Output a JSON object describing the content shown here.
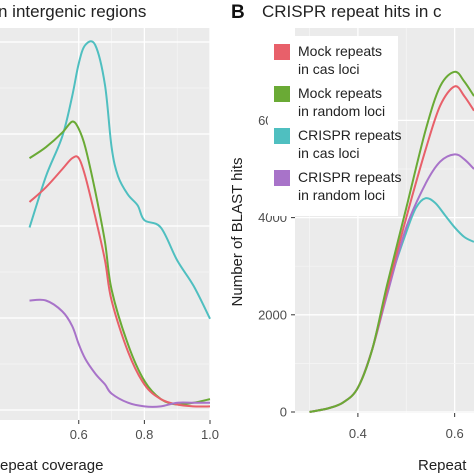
{
  "figure": {
    "panel_a_title": "n intergenic regions",
    "panel_b_letter": "B",
    "panel_b_title": "CRISPR repeat hits in c"
  },
  "chart_data": [
    {
      "panel": "A",
      "type": "line",
      "title": "n intergenic regions",
      "xlabel": "epeat coverage",
      "ylabel": "",
      "xlim": [
        0.36,
        1.0
      ],
      "ylim": [
        0,
        1
      ],
      "x_ticks": [
        0.6,
        0.8,
        1.0
      ],
      "x_tick_labels": [
        "0.6",
        "0.8",
        "1.0"
      ],
      "grid": true,
      "series": [
        {
          "color": "#4fbfc0",
          "x": [
            0.45,
            0.5,
            0.55,
            0.58,
            0.6,
            0.62,
            0.65,
            0.68,
            0.7,
            0.72,
            0.75,
            0.78,
            0.8,
            0.85,
            0.9,
            0.95,
            1.0
          ],
          "y": [
            0.5,
            0.64,
            0.75,
            0.86,
            0.95,
            1.0,
            1.0,
            0.89,
            0.72,
            0.64,
            0.59,
            0.56,
            0.52,
            0.5,
            0.41,
            0.34,
            0.25
          ]
        },
        {
          "color": "#6aaa35",
          "x": [
            0.45,
            0.5,
            0.55,
            0.58,
            0.6,
            0.62,
            0.65,
            0.68,
            0.7,
            0.75,
            0.8,
            0.85,
            0.9,
            0.95,
            1.0
          ],
          "y": [
            0.69,
            0.72,
            0.76,
            0.79,
            0.77,
            0.72,
            0.6,
            0.46,
            0.33,
            0.18,
            0.08,
            0.03,
            0.015,
            0.02,
            0.03
          ]
        },
        {
          "color": "#e8606a",
          "x": [
            0.45,
            0.5,
            0.55,
            0.58,
            0.6,
            0.62,
            0.65,
            0.68,
            0.7,
            0.75,
            0.8,
            0.85,
            0.9,
            0.95,
            1.0
          ],
          "y": [
            0.57,
            0.61,
            0.66,
            0.69,
            0.69,
            0.64,
            0.53,
            0.41,
            0.3,
            0.16,
            0.07,
            0.03,
            0.015,
            0.01,
            0.01
          ]
        },
        {
          "color": "#a873c9",
          "x": [
            0.45,
            0.5,
            0.55,
            0.58,
            0.6,
            0.62,
            0.65,
            0.68,
            0.7,
            0.75,
            0.8,
            0.85,
            0.9,
            0.95,
            1.0
          ],
          "y": [
            0.3,
            0.3,
            0.27,
            0.23,
            0.18,
            0.14,
            0.1,
            0.07,
            0.045,
            0.02,
            0.01,
            0.01,
            0.02,
            0.02,
            0.02
          ]
        }
      ]
    },
    {
      "panel": "B",
      "type": "line",
      "title": "CRISPR repeat hits in c",
      "xlabel": "Repeat",
      "ylabel": "Number of BLAST hits",
      "xlim": [
        0.27,
        0.64
      ],
      "ylim": [
        0,
        6800
      ],
      "x_ticks": [
        0.4,
        0.6
      ],
      "x_tick_labels": [
        "0.4",
        "0.6"
      ],
      "y_ticks": [
        0,
        2000,
        4000,
        6000
      ],
      "y_tick_labels": [
        "0",
        "2000",
        "4000",
        "6000"
      ],
      "grid": true,
      "legend_position": "top-left",
      "series": [
        {
          "name": "Mock repeats in cas loci",
          "color": "#e8606a",
          "x": [
            0.3,
            0.34,
            0.37,
            0.4,
            0.43,
            0.46,
            0.5,
            0.54,
            0.57,
            0.6,
            0.62,
            0.64
          ],
          "y": [
            0,
            80,
            200,
            500,
            1300,
            2500,
            4000,
            5400,
            6300,
            6700,
            6500,
            6200
          ]
        },
        {
          "name": "Mock repeats in random loci",
          "color": "#6aaa35",
          "x": [
            0.3,
            0.34,
            0.37,
            0.4,
            0.43,
            0.46,
            0.5,
            0.54,
            0.57,
            0.6,
            0.62,
            0.64
          ],
          "y": [
            0,
            80,
            200,
            500,
            1300,
            2600,
            4200,
            5800,
            6700,
            7000,
            6800,
            6500
          ]
        },
        {
          "name": "CRISPR repeats in cas loci",
          "color": "#4fbfc0",
          "x": [
            0.3,
            0.34,
            0.37,
            0.4,
            0.43,
            0.46,
            0.5,
            0.52,
            0.54,
            0.56,
            0.58,
            0.6,
            0.62,
            0.64
          ],
          "y": [
            0,
            80,
            200,
            500,
            1300,
            2500,
            3700,
            4200,
            4400,
            4300,
            4050,
            3800,
            3600,
            3500
          ]
        },
        {
          "name": "CRISPR repeats in random loci",
          "color": "#a873c9",
          "x": [
            0.3,
            0.34,
            0.37,
            0.4,
            0.43,
            0.46,
            0.5,
            0.54,
            0.57,
            0.6,
            0.62,
            0.64
          ],
          "y": [
            0,
            80,
            200,
            500,
            1300,
            2400,
            3800,
            4700,
            5150,
            5300,
            5200,
            5000
          ]
        }
      ]
    }
  ]
}
